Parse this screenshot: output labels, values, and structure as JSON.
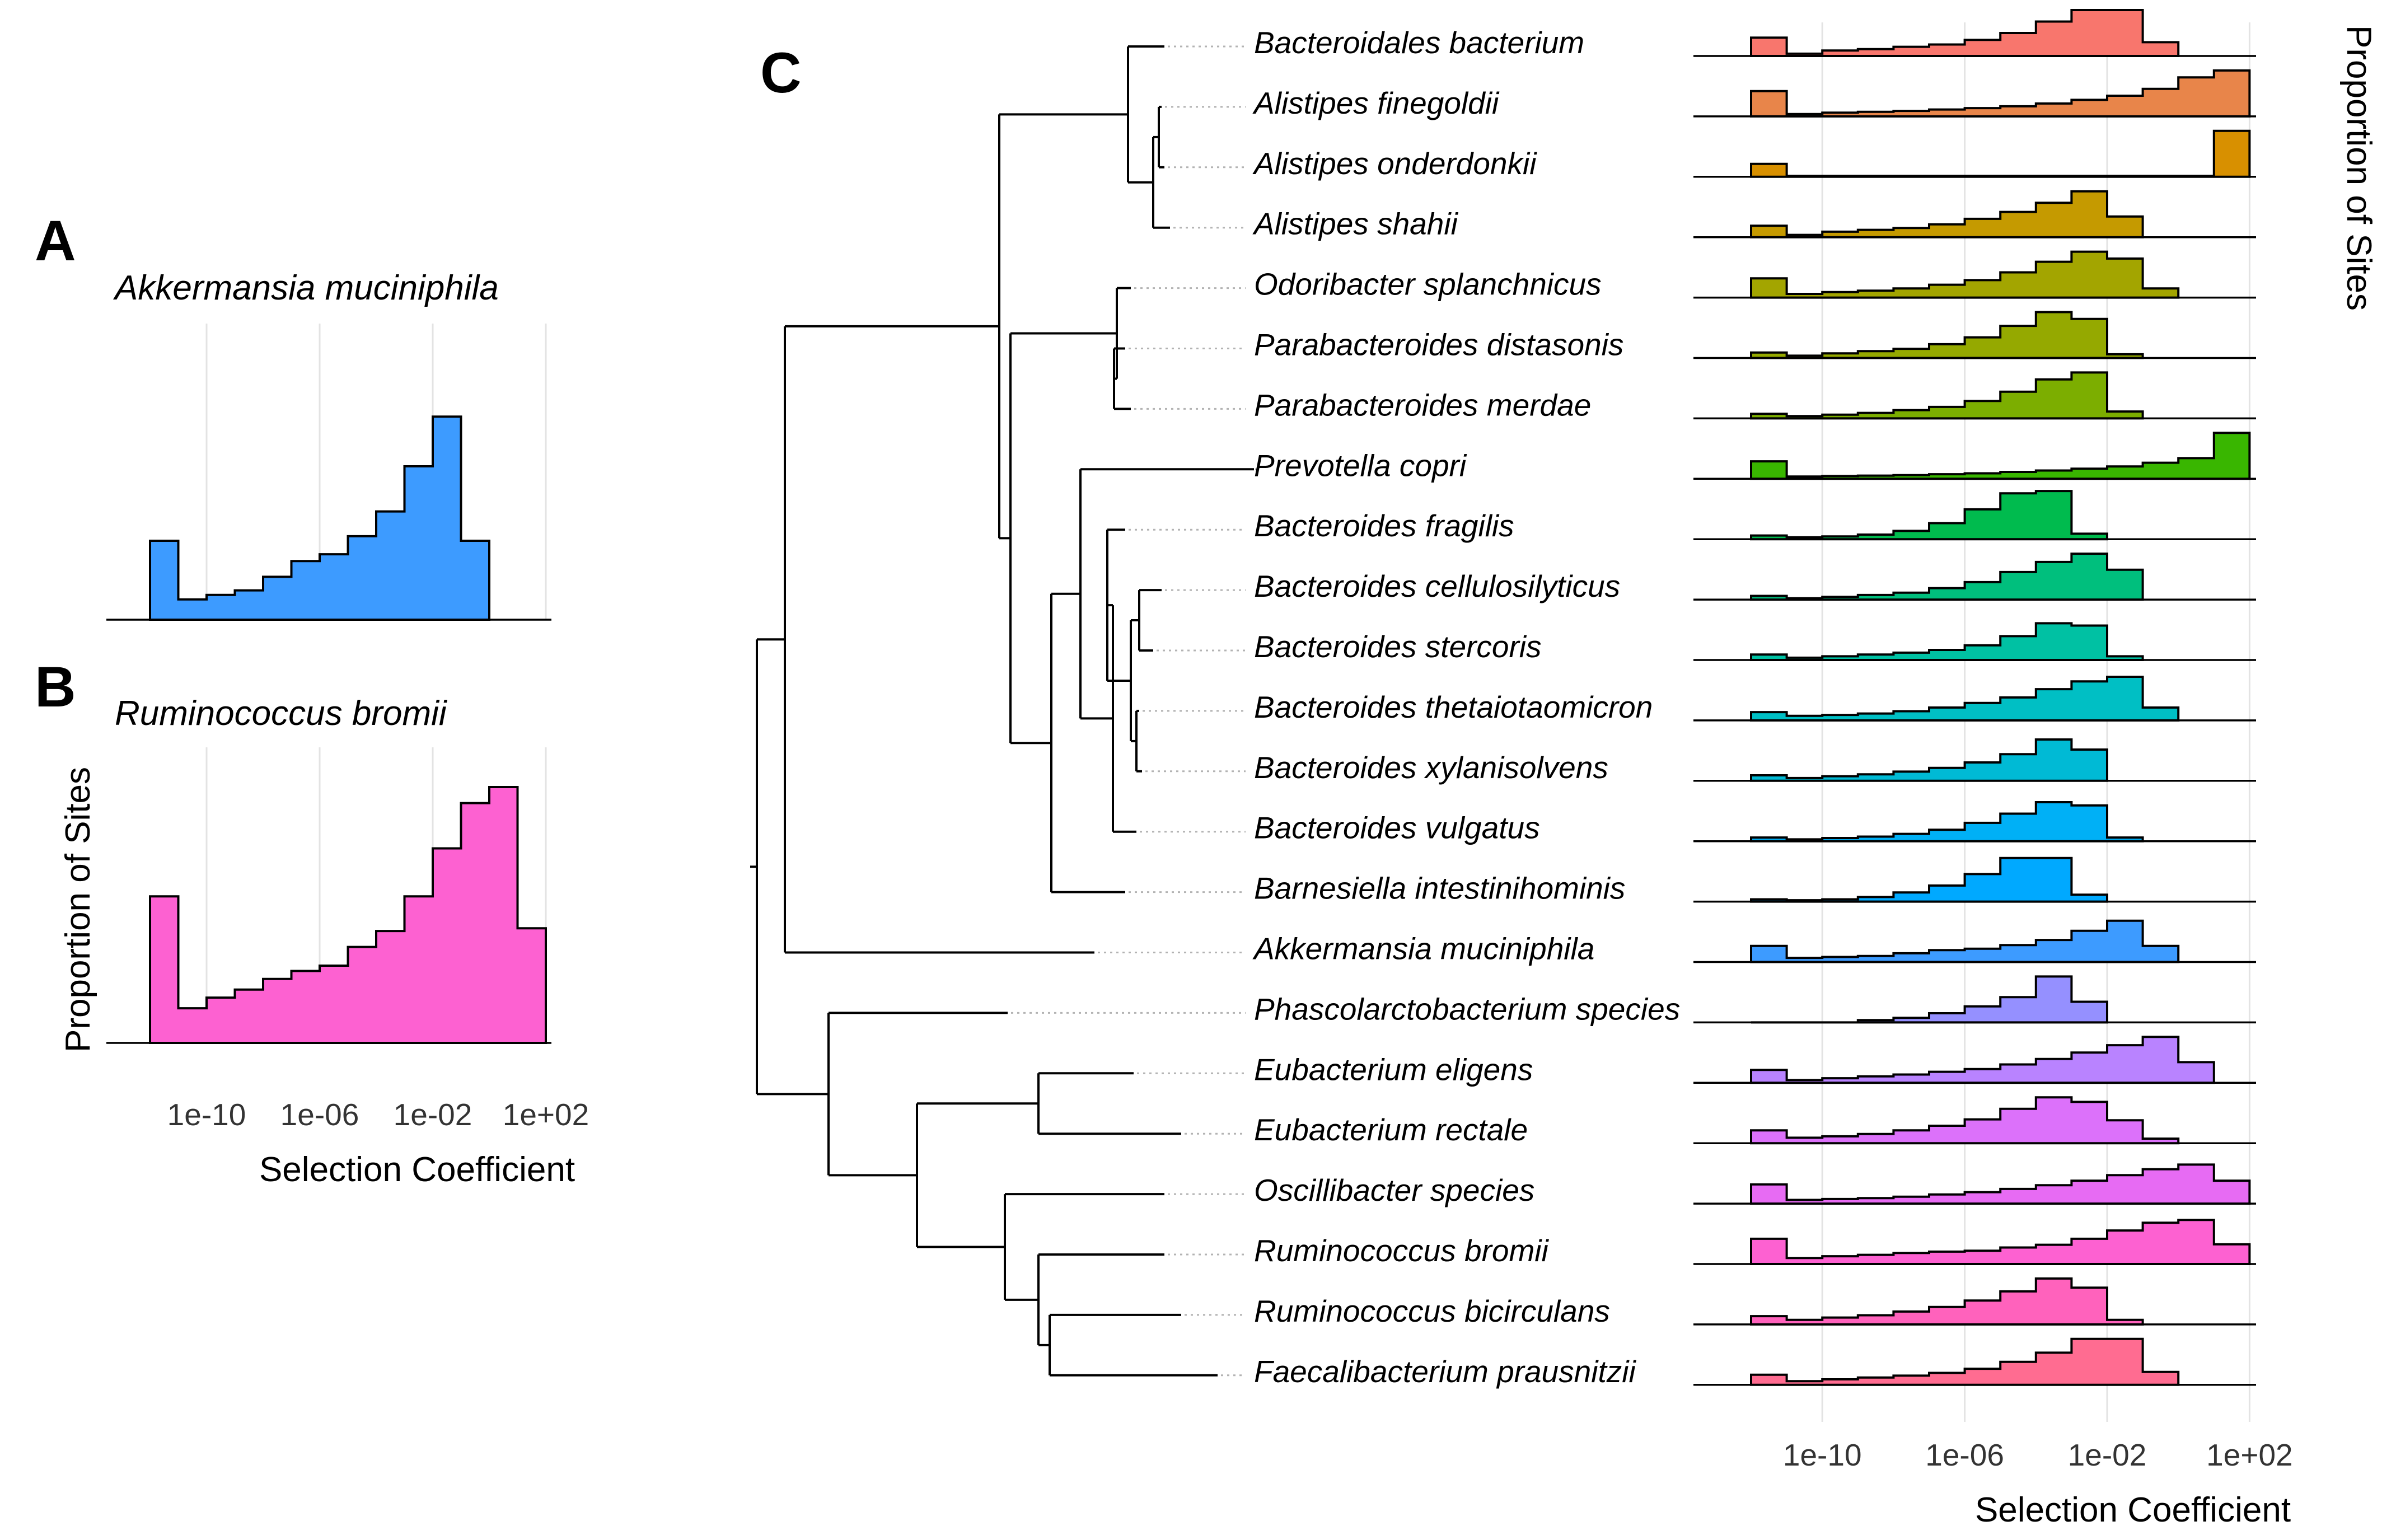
{
  "panels": {
    "a": {
      "letter": "A",
      "title": "Akkermansia muciniphila"
    },
    "b": {
      "letter": "B",
      "title": "Ruminococcus bromii"
    },
    "c": {
      "letter": "C"
    }
  },
  "axes": {
    "xlabel": "Selection Coefficient",
    "ylabel": "Proportion of Sites",
    "xticks": [
      "1e-10",
      "1e-06",
      "1e-02",
      "1e+02"
    ]
  },
  "colors": {
    "Bacteroidales bacterium": "#f8766d",
    "Alistipes finegoldii": "#e8854a",
    "Alistipes onderdonkii": "#d89000",
    "Alistipes shahii": "#c59a00",
    "Odoribacter splanchnicus": "#a3a500",
    "Parabacteroides distasonis": "#95a900",
    "Parabacteroides merdae": "#7cae00",
    "Prevotella copri": "#39b600",
    "Bacteroides fragilis": "#00bb4e",
    "Bacteroides cellulosilyticus": "#00bf7d",
    "Bacteroides stercoris": "#00c1a3",
    "Bacteroides thetaiotaomicron": "#00bfc4",
    "Bacteroides xylanisolvens": "#00bad5",
    "Bacteroides vulgatus": "#00b0f6",
    "Barnesiella intestinihominis": "#00a9ff",
    "Akkermansia muciniphila": "#3d9bff",
    "Phascolarctobacterium species": "#9590ff",
    "Eubacterium eligens": "#b983ff",
    "Eubacterium rectale": "#dc71fa",
    "Oscillibacter species": "#e76bf3",
    "Ruminococcus bromii": "#fd61d1",
    "Ruminococcus bicirculans": "#ff62bc",
    "Faecalibacterium prausnitzii": "#ff6c91"
  },
  "chart_data": [
    {
      "type": "histogram",
      "panel": "A",
      "title": "Akkermansia muciniphila",
      "xlabel": "Selection Coefficient",
      "xscale": "log10",
      "xticks": [
        "1e-10",
        "1e-06",
        "1e-02",
        "1e+02"
      ],
      "bin_edges_log10": [
        -12,
        -11,
        -10,
        -9,
        -8,
        -7,
        -6,
        -5,
        -4,
        -3,
        -2,
        -1,
        0
      ],
      "values": [
        0.35,
        0.09,
        0.11,
        0.13,
        0.19,
        0.26,
        0.29,
        0.37,
        0.48,
        0.68,
        0.9,
        0.35
      ]
    },
    {
      "type": "histogram",
      "panel": "B",
      "title": "Ruminococcus bromii",
      "xlabel": "Selection Coefficient",
      "ylabel": "Proportion of Sites",
      "xscale": "log10",
      "xticks": [
        "1e-10",
        "1e-06",
        "1e-02",
        "1e+02"
      ],
      "bin_edges_log10": [
        -12,
        -11,
        -10,
        -9,
        -8,
        -7,
        -6,
        -5,
        -4,
        -3,
        -2,
        -1,
        0,
        1
      ],
      "values": [
        0.55,
        0.13,
        0.17,
        0.2,
        0.24,
        0.27,
        0.29,
        0.36,
        0.42,
        0.55,
        0.73,
        0.9,
        0.96,
        0.43
      ]
    },
    {
      "type": "tree_with_histograms",
      "panel": "C",
      "xlabel": "Selection Coefficient",
      "ylabel": "Proportion of Sites",
      "xscale": "log10",
      "xticks": [
        "1e-10",
        "1e-06",
        "1e-02",
        "1e+02"
      ],
      "hist_start_log10": -12,
      "bin_width_log10": 1,
      "species": [
        {
          "name": "Bacteroidales bacterium",
          "values": [
            0.4,
            0.05,
            0.12,
            0.15,
            0.2,
            0.25,
            0.35,
            0.5,
            0.75,
            1.0,
            1.0,
            0.3
          ]
        },
        {
          "name": "Alistipes finegoldii",
          "values": [
            0.55,
            0.05,
            0.08,
            0.1,
            0.12,
            0.15,
            0.18,
            0.22,
            0.28,
            0.36,
            0.45,
            0.6,
            0.85,
            1.0
          ]
        },
        {
          "name": "Alistipes onderdonkii",
          "values": [
            0.28,
            0.02,
            0.02,
            0.02,
            0.02,
            0.02,
            0.02,
            0.02,
            0.02,
            0.02,
            0.02,
            0.02,
            0.02,
            1.0
          ]
        },
        {
          "name": "Alistipes shahii",
          "values": [
            0.25,
            0.05,
            0.12,
            0.16,
            0.2,
            0.28,
            0.4,
            0.55,
            0.75,
            1.0,
            0.45
          ]
        },
        {
          "name": "Odoribacter splanchnicus",
          "values": [
            0.42,
            0.08,
            0.12,
            0.15,
            0.2,
            0.28,
            0.38,
            0.55,
            0.78,
            1.0,
            0.85,
            0.2
          ]
        },
        {
          "name": "Parabacteroides distasonis",
          "values": [
            0.12,
            0.05,
            0.1,
            0.15,
            0.2,
            0.3,
            0.45,
            0.7,
            1.0,
            0.85,
            0.08
          ]
        },
        {
          "name": "Parabacteroides merdae",
          "values": [
            0.1,
            0.05,
            0.08,
            0.12,
            0.18,
            0.25,
            0.38,
            0.58,
            0.85,
            1.0,
            0.15
          ]
        },
        {
          "name": "Prevotella copri",
          "values": [
            0.38,
            0.05,
            0.06,
            0.07,
            0.08,
            0.1,
            0.12,
            0.15,
            0.18,
            0.22,
            0.27,
            0.35,
            0.45,
            1.0
          ]
        },
        {
          "name": "Bacteroides fragilis",
          "values": [
            0.08,
            0.04,
            0.06,
            0.1,
            0.18,
            0.35,
            0.65,
            1.0,
            1.05,
            0.12
          ]
        },
        {
          "name": "Bacteroides cellulosilyticus",
          "values": [
            0.08,
            0.03,
            0.06,
            0.1,
            0.15,
            0.25,
            0.38,
            0.6,
            0.82,
            1.0,
            0.65
          ]
        },
        {
          "name": "Bacteroides stercoris",
          "values": [
            0.12,
            0.05,
            0.08,
            0.12,
            0.16,
            0.22,
            0.32,
            0.52,
            0.8,
            0.75,
            0.08
          ]
        },
        {
          "name": "Bacteroides thetaiotaomicron",
          "values": [
            0.18,
            0.1,
            0.12,
            0.15,
            0.2,
            0.28,
            0.38,
            0.5,
            0.68,
            0.85,
            0.95,
            0.28
          ]
        },
        {
          "name": "Bacteroides xylanisolvens",
          "values": [
            0.12,
            0.06,
            0.1,
            0.14,
            0.2,
            0.28,
            0.4,
            0.58,
            0.9,
            0.68
          ]
        },
        {
          "name": "Bacteroides vulgatus",
          "values": [
            0.08,
            0.04,
            0.07,
            0.1,
            0.16,
            0.25,
            0.4,
            0.6,
            0.85,
            0.78,
            0.08
          ]
        },
        {
          "name": "Barnesiella intestinihominis",
          "values": [
            0.05,
            0.03,
            0.05,
            0.1,
            0.2,
            0.35,
            0.6,
            0.95,
            0.95,
            0.15
          ]
        },
        {
          "name": "Akkermansia muciniphila",
          "values": [
            0.35,
            0.09,
            0.11,
            0.13,
            0.19,
            0.26,
            0.29,
            0.37,
            0.48,
            0.68,
            0.9,
            0.35
          ]
        },
        {
          "name": "Phascolarctobacterium species",
          "values": [
            0.0,
            0.0,
            0.0,
            0.05,
            0.1,
            0.2,
            0.35,
            0.55,
            1.0,
            0.45
          ]
        },
        {
          "name": "Eubacterium eligens",
          "values": [
            0.28,
            0.06,
            0.1,
            0.14,
            0.18,
            0.24,
            0.3,
            0.4,
            0.52,
            0.66,
            0.82,
            1.0,
            0.45
          ]
        },
        {
          "name": "Eubacterium rectale",
          "values": [
            0.28,
            0.12,
            0.15,
            0.2,
            0.28,
            0.38,
            0.52,
            0.75,
            1.0,
            0.9,
            0.5,
            0.1
          ]
        },
        {
          "name": "Oscillibacter species",
          "values": [
            0.42,
            0.08,
            0.1,
            0.12,
            0.15,
            0.2,
            0.25,
            0.32,
            0.4,
            0.5,
            0.62,
            0.75,
            0.85,
            0.5
          ]
        },
        {
          "name": "Ruminococcus bromii",
          "values": [
            0.55,
            0.13,
            0.17,
            0.2,
            0.24,
            0.27,
            0.29,
            0.36,
            0.42,
            0.55,
            0.73,
            0.9,
            0.96,
            0.43
          ]
        },
        {
          "name": "Ruminococcus bicirculans",
          "values": [
            0.18,
            0.1,
            0.15,
            0.2,
            0.28,
            0.38,
            0.52,
            0.72,
            1.0,
            0.8,
            0.1
          ]
        },
        {
          "name": "Faecalibacterium prausnitzii",
          "values": [
            0.22,
            0.08,
            0.12,
            0.16,
            0.2,
            0.26,
            0.35,
            0.5,
            0.7,
            1.0,
            1.0,
            0.28
          ]
        }
      ]
    }
  ]
}
